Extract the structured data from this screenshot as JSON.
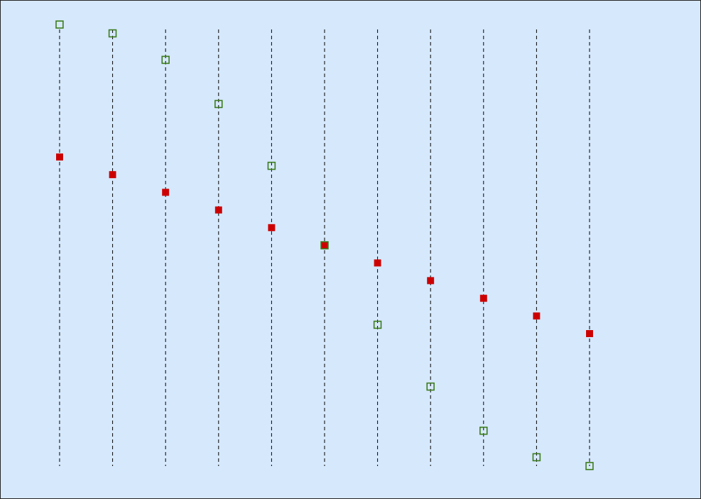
{
  "chart_data": {
    "type": "scatter",
    "x": [
      0,
      1,
      2,
      3,
      4,
      5,
      6,
      7,
      8,
      9,
      10
    ],
    "xlim": [
      0,
      10
    ],
    "ylim": [
      -1,
      1
    ],
    "series": [
      {
        "color": "#cc0000",
        "marker": "filled",
        "values": [
          0.4,
          0.32,
          0.24,
          0.16,
          0.08,
          0,
          -0.08,
          -0.16,
          -0.24,
          -0.32,
          -0.4
        ]
      },
      {
        "color": "#3a7a1a",
        "marker": "hollow",
        "values": [
          1.0,
          0.96,
          0.84,
          0.64,
          0.36,
          0,
          -0.36,
          -0.64,
          -0.84,
          -0.96,
          -1.0
        ]
      }
    ]
  }
}
